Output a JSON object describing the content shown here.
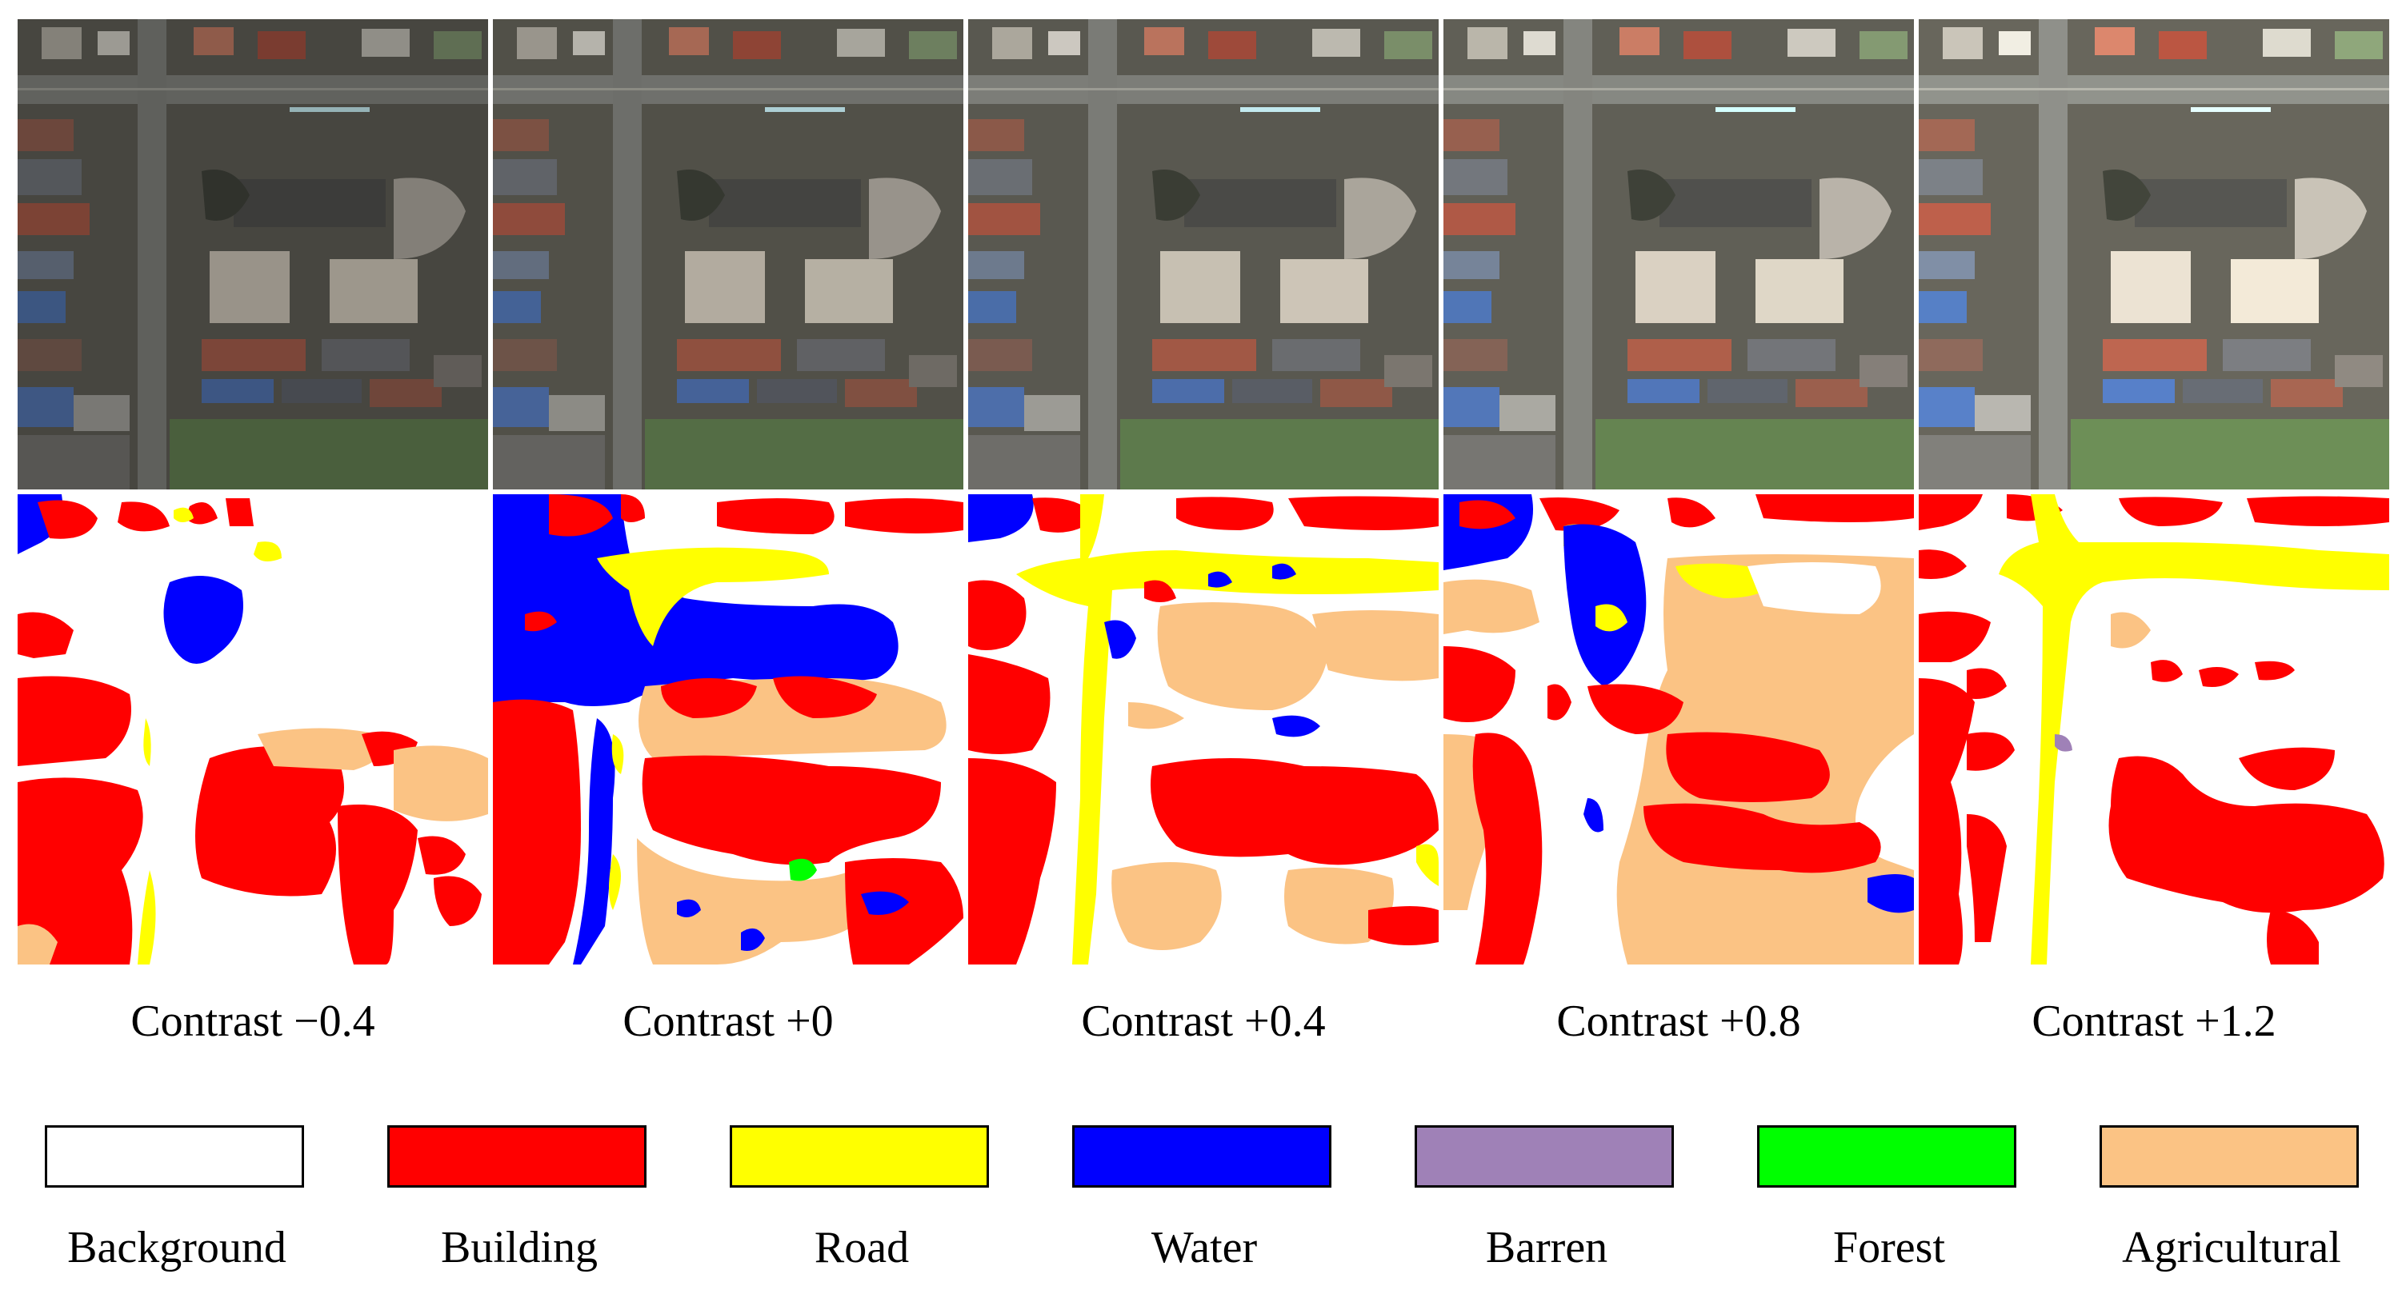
{
  "panels": [
    {
      "caption": "Contrast −0.4",
      "brightness": 0.78
    },
    {
      "caption": "Contrast +0",
      "brightness": 0.9
    },
    {
      "caption": "Contrast +0.4",
      "brightness": 1.0
    },
    {
      "caption": "Contrast +0.8",
      "brightness": 1.08
    },
    {
      "caption": "Contrast +1.2",
      "brightness": 1.16
    }
  ],
  "legend": [
    {
      "label": "Background",
      "color": "#ffffff"
    },
    {
      "label": "Building",
      "color": "#ff0000"
    },
    {
      "label": "Road",
      "color": "#ffff00"
    },
    {
      "label": "Water",
      "color": "#0000ff"
    },
    {
      "label": "Barren",
      "color": "#9f81b7"
    },
    {
      "label": "Forest",
      "color": "#00ff00"
    },
    {
      "label": "Agricultural",
      "color": "#fbc384"
    }
  ]
}
